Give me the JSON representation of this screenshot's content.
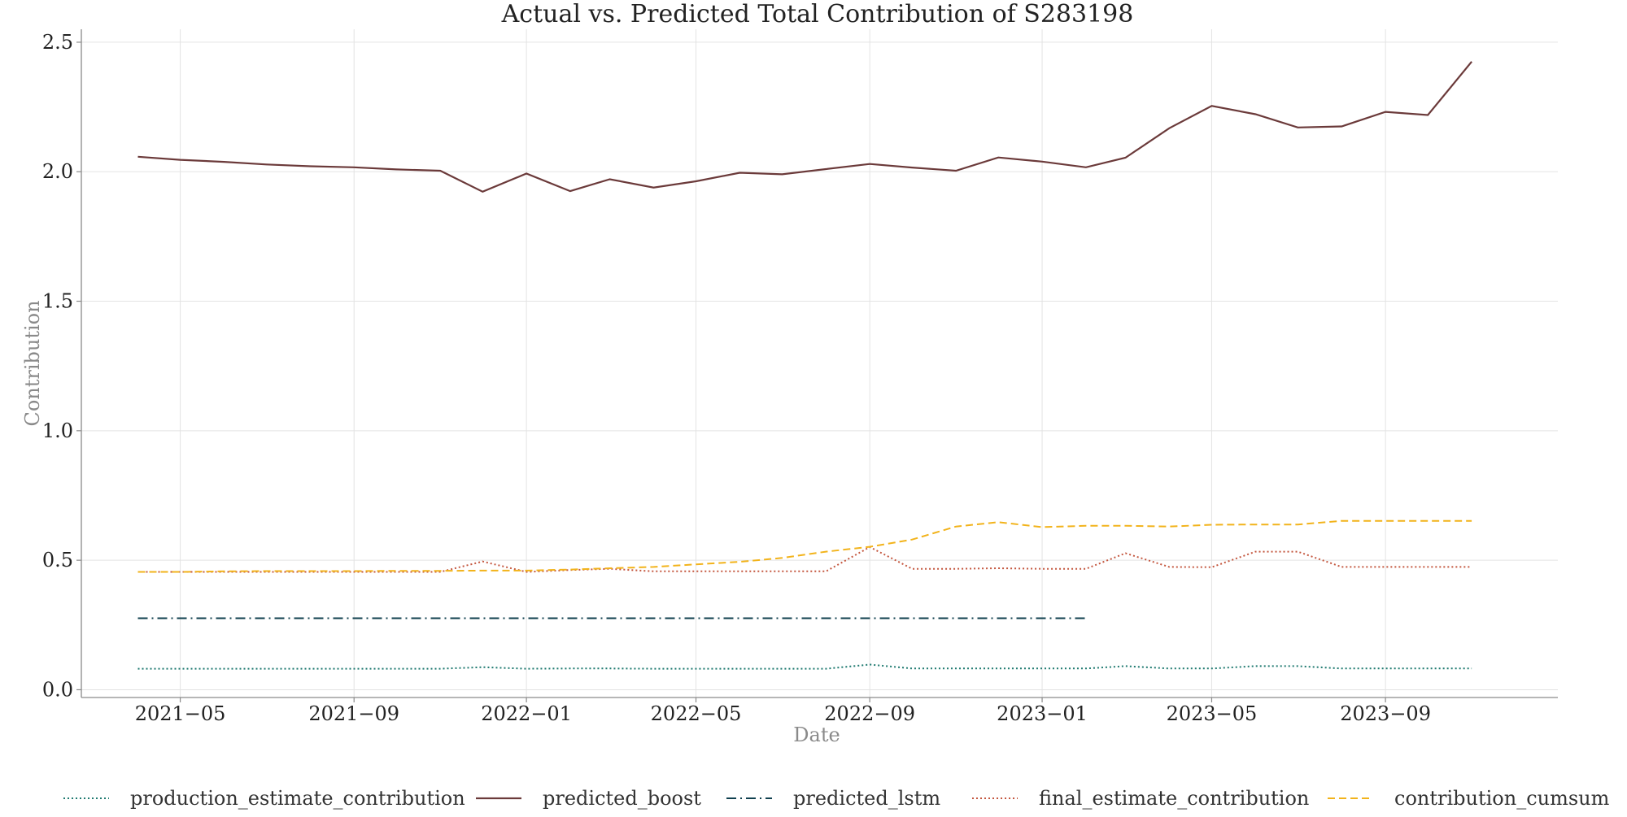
{
  "chart_data": {
    "type": "line",
    "title": "Actual vs. Predicted Total Contribution of S283198",
    "xlabel": "Date",
    "ylabel": "Contribution",
    "x_type": "date",
    "xlim": [
      "2021-02-20",
      "2024-01-01"
    ],
    "ylim": [
      -0.03,
      2.55
    ],
    "x_ticks": [
      "2021-05-01",
      "2021-09-01",
      "2022-01-01",
      "2022-05-01",
      "2022-09-01",
      "2023-01-01",
      "2023-05-01",
      "2023-09-01"
    ],
    "x_tick_labels": [
      "2021−05",
      "2021−09",
      "2022−01",
      "2022−05",
      "2022−09",
      "2023−01",
      "2023−05",
      "2023−09"
    ],
    "y_ticks": [
      0.0,
      0.5,
      1.0,
      1.5,
      2.0,
      2.5
    ],
    "y_tick_labels": [
      "0.0",
      "0.5",
      "1.0",
      "1.5",
      "2.0",
      "2.5"
    ],
    "grid": true,
    "legend_position": "bottom",
    "series": [
      {
        "name": "production_estimate_contribution",
        "color": "#1f7a70",
        "style": "dotted",
        "points": [
          [
            "2021-04-01",
            0.081
          ],
          [
            "2021-05-01",
            0.081
          ],
          [
            "2021-06-01",
            0.081
          ],
          [
            "2021-07-01",
            0.081
          ],
          [
            "2021-08-01",
            0.081
          ],
          [
            "2021-09-01",
            0.081
          ],
          [
            "2021-10-01",
            0.081
          ],
          [
            "2021-11-01",
            0.081
          ],
          [
            "2021-12-01",
            0.087
          ],
          [
            "2022-01-01",
            0.081
          ],
          [
            "2022-02-01",
            0.082
          ],
          [
            "2022-03-01",
            0.082
          ],
          [
            "2022-04-01",
            0.081
          ],
          [
            "2022-05-01",
            0.081
          ],
          [
            "2022-06-01",
            0.081
          ],
          [
            "2022-07-01",
            0.081
          ],
          [
            "2022-08-01",
            0.081
          ],
          [
            "2022-09-01",
            0.097
          ],
          [
            "2022-10-01",
            0.082
          ],
          [
            "2022-11-01",
            0.082
          ],
          [
            "2022-12-01",
            0.082
          ],
          [
            "2023-01-01",
            0.082
          ],
          [
            "2023-02-01",
            0.082
          ],
          [
            "2023-03-01",
            0.091
          ],
          [
            "2023-04-01",
            0.082
          ],
          [
            "2023-05-01",
            0.082
          ],
          [
            "2023-06-01",
            0.091
          ],
          [
            "2023-07-01",
            0.091
          ],
          [
            "2023-08-01",
            0.082
          ],
          [
            "2023-09-01",
            0.082
          ],
          [
            "2023-10-01",
            0.082
          ],
          [
            "2023-11-01",
            0.082
          ]
        ]
      },
      {
        "name": "predicted_boost",
        "color": "#6b3a3a",
        "style": "solid",
        "points": [
          [
            "2021-04-01",
            2.058
          ],
          [
            "2021-05-01",
            2.046
          ],
          [
            "2021-06-01",
            2.038
          ],
          [
            "2021-07-01",
            2.028
          ],
          [
            "2021-08-01",
            2.021
          ],
          [
            "2021-09-01",
            2.017
          ],
          [
            "2021-10-01",
            2.009
          ],
          [
            "2021-11-01",
            2.004
          ],
          [
            "2021-12-01",
            1.923
          ],
          [
            "2022-01-01",
            1.993
          ],
          [
            "2022-02-01",
            1.925
          ],
          [
            "2022-03-01",
            1.971
          ],
          [
            "2022-04-01",
            1.939
          ],
          [
            "2022-05-01",
            1.963
          ],
          [
            "2022-06-01",
            1.996
          ],
          [
            "2022-07-01",
            1.99
          ],
          [
            "2022-08-01",
            2.01
          ],
          [
            "2022-09-01",
            2.03
          ],
          [
            "2022-10-01",
            2.016
          ],
          [
            "2022-11-01",
            2.004
          ],
          [
            "2022-12-01",
            2.055
          ],
          [
            "2023-01-01",
            2.039
          ],
          [
            "2023-02-01",
            2.017
          ],
          [
            "2023-03-01",
            2.054
          ],
          [
            "2023-04-01",
            2.168
          ],
          [
            "2023-05-01",
            2.254
          ],
          [
            "2023-06-01",
            2.222
          ],
          [
            "2023-07-01",
            2.171
          ],
          [
            "2023-08-01",
            2.175
          ],
          [
            "2023-09-01",
            2.231
          ],
          [
            "2023-10-01",
            2.219
          ],
          [
            "2023-11-01",
            2.425
          ]
        ]
      },
      {
        "name": "predicted_lstm",
        "color": "#10404f",
        "style": "dashdot",
        "points": [
          [
            "2021-04-01",
            0.276
          ],
          [
            "2021-05-01",
            0.276
          ],
          [
            "2021-06-01",
            0.276
          ],
          [
            "2021-07-01",
            0.276
          ],
          [
            "2021-08-01",
            0.276
          ],
          [
            "2021-09-01",
            0.276
          ],
          [
            "2021-10-01",
            0.276
          ],
          [
            "2021-11-01",
            0.276
          ],
          [
            "2021-12-01",
            0.276
          ],
          [
            "2022-01-01",
            0.276
          ],
          [
            "2022-02-01",
            0.276
          ],
          [
            "2022-03-01",
            0.276
          ],
          [
            "2022-04-01",
            0.276
          ],
          [
            "2022-05-01",
            0.276
          ],
          [
            "2022-06-01",
            0.276
          ],
          [
            "2022-07-01",
            0.276
          ],
          [
            "2022-08-01",
            0.276
          ],
          [
            "2022-09-01",
            0.276
          ],
          [
            "2022-10-01",
            0.276
          ],
          [
            "2022-11-01",
            0.276
          ],
          [
            "2022-12-01",
            0.276
          ],
          [
            "2023-01-01",
            0.276
          ],
          [
            "2023-02-01",
            0.276
          ]
        ]
      },
      {
        "name": "final_estimate_contribution",
        "color": "#c4573f",
        "style": "dotted",
        "points": [
          [
            "2021-04-01",
            0.455
          ],
          [
            "2021-05-01",
            0.455
          ],
          [
            "2021-06-01",
            0.455
          ],
          [
            "2021-07-01",
            0.455
          ],
          [
            "2021-08-01",
            0.455
          ],
          [
            "2021-09-01",
            0.455
          ],
          [
            "2021-10-01",
            0.455
          ],
          [
            "2021-11-01",
            0.455
          ],
          [
            "2021-12-01",
            0.495
          ],
          [
            "2022-01-01",
            0.455
          ],
          [
            "2022-02-01",
            0.462
          ],
          [
            "2022-03-01",
            0.467
          ],
          [
            "2022-04-01",
            0.457
          ],
          [
            "2022-05-01",
            0.457
          ],
          [
            "2022-06-01",
            0.457
          ],
          [
            "2022-07-01",
            0.457
          ],
          [
            "2022-08-01",
            0.457
          ],
          [
            "2022-09-01",
            0.551
          ],
          [
            "2022-10-01",
            0.467
          ],
          [
            "2022-11-01",
            0.467
          ],
          [
            "2022-12-01",
            0.469
          ],
          [
            "2023-01-01",
            0.467
          ],
          [
            "2023-02-01",
            0.467
          ],
          [
            "2023-03-01",
            0.527
          ],
          [
            "2023-04-01",
            0.474
          ],
          [
            "2023-05-01",
            0.473
          ],
          [
            "2023-06-01",
            0.533
          ],
          [
            "2023-07-01",
            0.533
          ],
          [
            "2023-08-01",
            0.474
          ],
          [
            "2023-09-01",
            0.474
          ],
          [
            "2023-10-01",
            0.474
          ],
          [
            "2023-11-01",
            0.474
          ]
        ]
      },
      {
        "name": "contribution_cumsum",
        "color": "#f2b31b",
        "style": "dashed",
        "points": [
          [
            "2021-04-01",
            0.455
          ],
          [
            "2021-05-01",
            0.455
          ],
          [
            "2021-06-01",
            0.457
          ],
          [
            "2021-07-01",
            0.458
          ],
          [
            "2021-08-01",
            0.458
          ],
          [
            "2021-09-01",
            0.458
          ],
          [
            "2021-10-01",
            0.459
          ],
          [
            "2021-11-01",
            0.459
          ],
          [
            "2021-12-01",
            0.46
          ],
          [
            "2022-01-01",
            0.46
          ],
          [
            "2022-02-01",
            0.464
          ],
          [
            "2022-03-01",
            0.469
          ],
          [
            "2022-04-01",
            0.474
          ],
          [
            "2022-05-01",
            0.484
          ],
          [
            "2022-06-01",
            0.494
          ],
          [
            "2022-07-01",
            0.509
          ],
          [
            "2022-08-01",
            0.533
          ],
          [
            "2022-09-01",
            0.552
          ],
          [
            "2022-10-01",
            0.58
          ],
          [
            "2022-11-01",
            0.63
          ],
          [
            "2022-12-01",
            0.647
          ],
          [
            "2023-01-01",
            0.628
          ],
          [
            "2023-02-01",
            0.633
          ],
          [
            "2023-03-01",
            0.633
          ],
          [
            "2023-04-01",
            0.63
          ],
          [
            "2023-05-01",
            0.637
          ],
          [
            "2023-06-01",
            0.638
          ],
          [
            "2023-07-01",
            0.638
          ],
          [
            "2023-08-01",
            0.652
          ],
          [
            "2023-09-01",
            0.652
          ],
          [
            "2023-10-01",
            0.652
          ],
          [
            "2023-11-01",
            0.652
          ]
        ]
      }
    ]
  }
}
